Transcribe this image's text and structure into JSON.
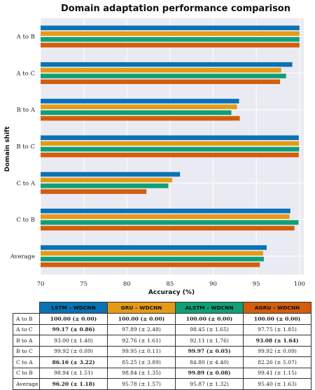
{
  "chart_data": {
    "type": "bar",
    "orientation": "horizontal",
    "title": "Domain adaptation performance comparison",
    "xlabel": "Accuracy (%)",
    "ylabel": "Domain shift",
    "xlim": [
      70,
      100.5
    ],
    "xticks": [
      70,
      75,
      80,
      85,
      90,
      95,
      100
    ],
    "grid": true,
    "categories": [
      "A to B",
      "A to C",
      "B to A",
      "B to C",
      "C to A",
      "C to B",
      "Average"
    ],
    "series": [
      {
        "name": "LSTM – WDCNN",
        "color": "#0a72b5",
        "values": [
          100.0,
          99.17,
          93.0,
          99.92,
          86.16,
          98.94,
          96.2
        ]
      },
      {
        "name": "GRU – WDCNN",
        "color": "#e59a16",
        "values": [
          100.0,
          97.89,
          92.76,
          99.95,
          85.25,
          98.84,
          95.78
        ]
      },
      {
        "name": "ALSTM – WDCNN",
        "color": "#109f76",
        "values": [
          100.0,
          98.45,
          92.11,
          99.97,
          84.8,
          99.89,
          95.87
        ]
      },
      {
        "name": "AGRU – WDCNN",
        "color": "#d45d0c",
        "values": [
          100.0,
          97.75,
          93.08,
          99.92,
          82.26,
          99.41,
          95.4
        ]
      }
    ]
  },
  "table": {
    "headers": [
      "LSTM – WDCNN",
      "GRU – WDCNN",
      "ALSTM – WDCNN",
      "AGRU – WDCNN"
    ],
    "header_colors": [
      "#0a72b5",
      "#e59a16",
      "#109f76",
      "#d45d0c"
    ],
    "rows": [
      {
        "label": "A to B",
        "cells": [
          {
            "text": "100.00 (± 0.00)",
            "bold": true
          },
          {
            "text": "100.00 (± 0.00)",
            "bold": true
          },
          {
            "text": "100.00 (± 0.00)",
            "bold": true
          },
          {
            "text": "100.00 (± 0.00)",
            "bold": true
          }
        ]
      },
      {
        "label": "A to C",
        "cells": [
          {
            "text": "99.17 (± 0.86)",
            "bold": true
          },
          {
            "text": "97.89 (± 2.48)",
            "bold": false
          },
          {
            "text": "98.45 (± 1.65)",
            "bold": false
          },
          {
            "text": "97.75 (± 1.85)",
            "bold": false
          }
        ]
      },
      {
        "label": "B to A",
        "cells": [
          {
            "text": "93.00 (± 1.40)",
            "bold": false
          },
          {
            "text": "92.76 (± 1.61)",
            "bold": false
          },
          {
            "text": "92.11 (± 1.76)",
            "bold": false
          },
          {
            "text": "93.08 (± 1.64)",
            "bold": true
          }
        ]
      },
      {
        "label": "B to C",
        "cells": [
          {
            "text": "99.92 (± 0.09)",
            "bold": false
          },
          {
            "text": "99.95 (± 0.11)",
            "bold": false
          },
          {
            "text": "99.97 (± 0.05)",
            "bold": true
          },
          {
            "text": "99.92 (± 0.09)",
            "bold": false
          }
        ]
      },
      {
        "label": "C to A",
        "cells": [
          {
            "text": "86.16 (± 3.22)",
            "bold": true
          },
          {
            "text": "85.25 (± 3.89)",
            "bold": false
          },
          {
            "text": "84.80 (± 4.40)",
            "bold": false
          },
          {
            "text": "82.26 (± 5.07)",
            "bold": false
          }
        ]
      },
      {
        "label": "C to B",
        "cells": [
          {
            "text": "98.94 (± 1.51)",
            "bold": false
          },
          {
            "text": "98.84 (± 1.35)",
            "bold": false
          },
          {
            "text": "99.89 (± 0.08)",
            "bold": true
          },
          {
            "text": "99.41 (± 1.15)",
            "bold": false
          }
        ]
      },
      {
        "label": "Average",
        "cells": [
          {
            "text": "96.20 (± 1.18)",
            "bold": true
          },
          {
            "text": "95.78 (± 1.57)",
            "bold": false
          },
          {
            "text": "95.87 (± 1.32)",
            "bold": false
          },
          {
            "text": "95.40 (± 1.63)",
            "bold": false
          }
        ]
      }
    ]
  }
}
